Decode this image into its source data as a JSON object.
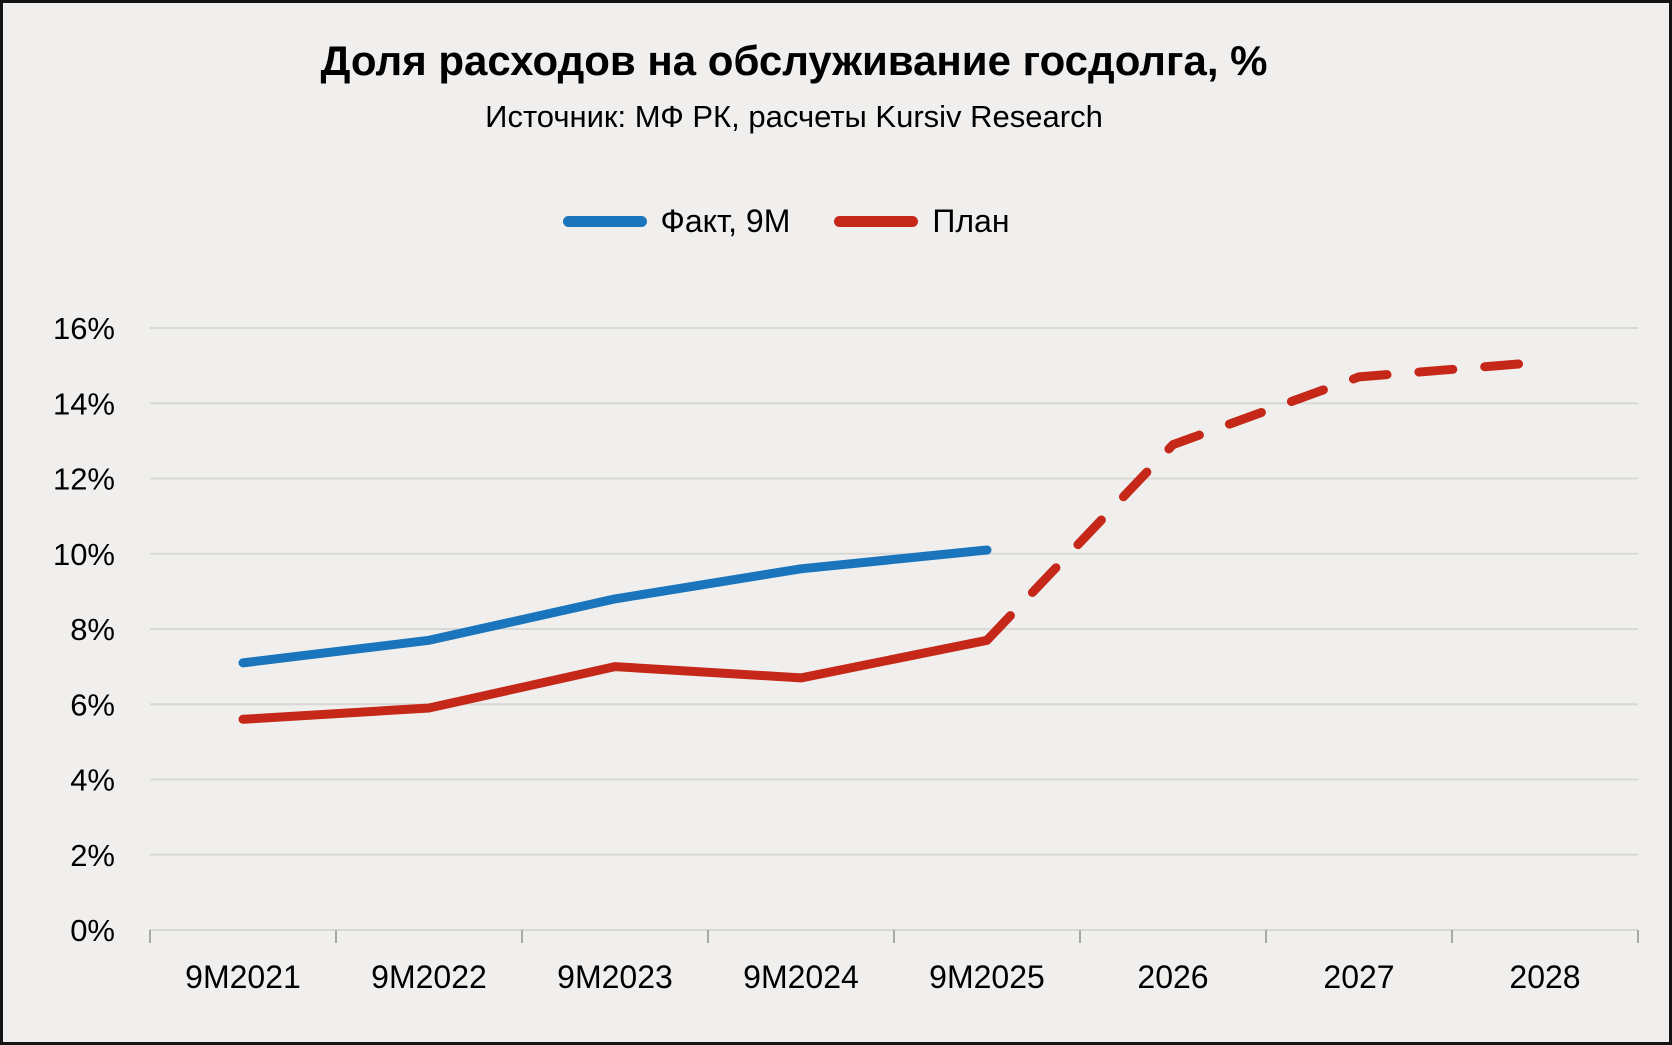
{
  "title": "Доля расходов на обслуживание госдолга, %",
  "subtitle": "Источник: МФ РК, расчеты Kursiv Research",
  "colors": {
    "fact": "#1b75bc",
    "plan": "#c52818",
    "background": "#f0efed",
    "gridline": "#d8d8d6",
    "tick": "#a8a8a6",
    "text": "#000000"
  },
  "legend": [
    {
      "label": "Факт, 9М",
      "series": "fact"
    },
    {
      "label": "План",
      "series": "plan"
    }
  ],
  "chart_data": {
    "type": "line",
    "categories": [
      "9М2021",
      "9М2022",
      "9М2023",
      "9М2024",
      "9М2025",
      "2026",
      "2027",
      "2028"
    ],
    "series": [
      {
        "name": "Факт, 9М",
        "color_key": "fact",
        "style": "solid",
        "values": [
          7.1,
          7.7,
          8.8,
          9.6,
          10.1,
          null,
          null,
          null
        ]
      },
      {
        "name": "План",
        "color_key": "plan",
        "style": "solid-then-dashed",
        "dashed_from_index": 4,
        "values": [
          5.6,
          5.9,
          7.0,
          6.7,
          7.7,
          12.9,
          14.7,
          15.1
        ]
      }
    ],
    "ylim": [
      0,
      16
    ],
    "ytick_step": 2,
    "ytick_suffix": "%",
    "grid": true,
    "legend_position": "top"
  }
}
